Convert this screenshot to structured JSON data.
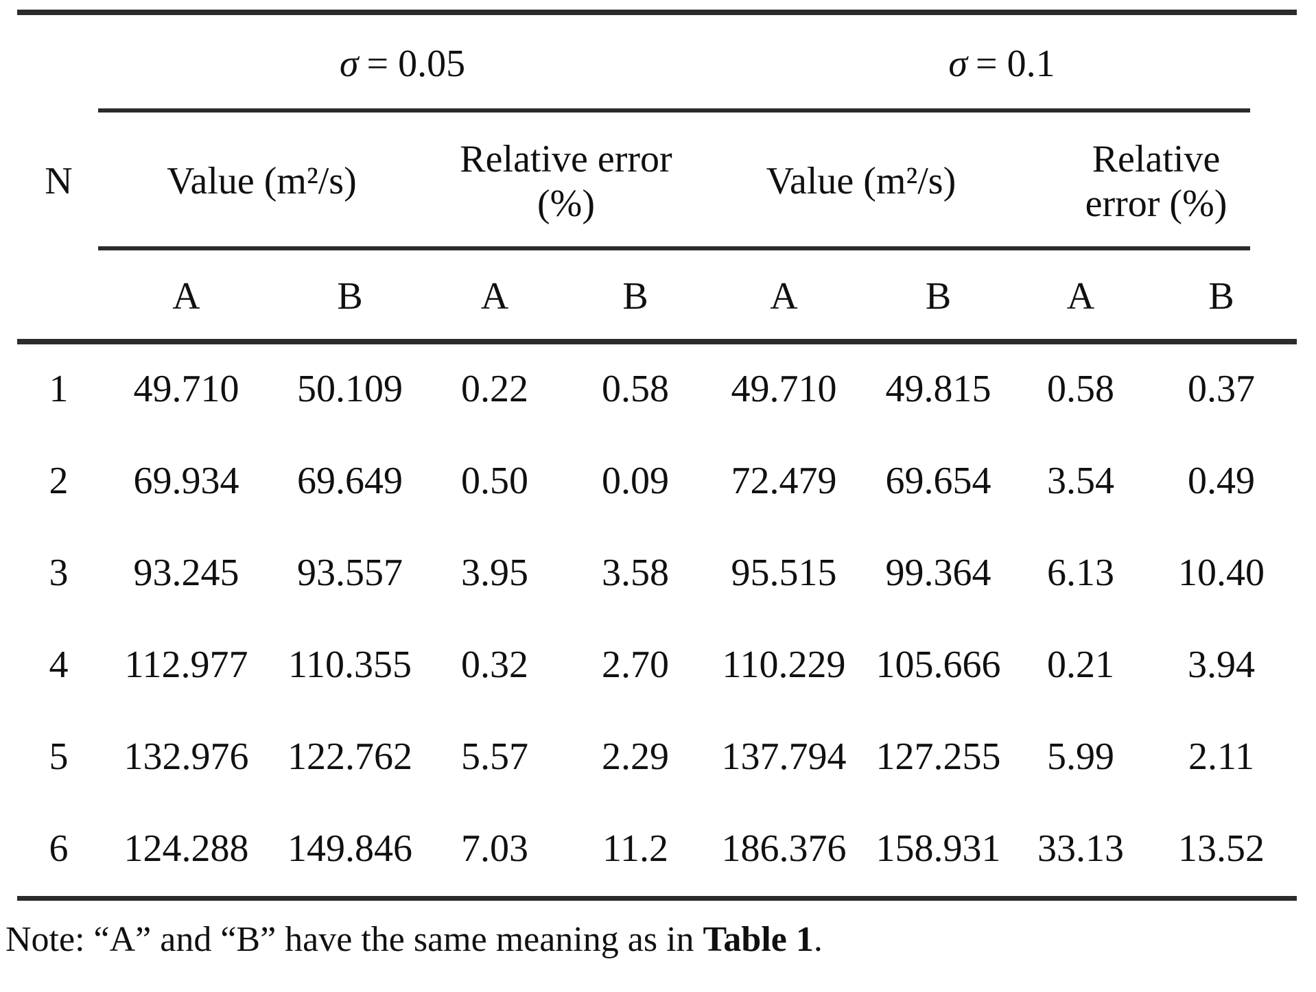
{
  "table": {
    "header": {
      "sigma1_symbol": "σ",
      "sigma1_rest": "= 0.05",
      "sigma2_symbol": "σ",
      "sigma2_rest": "= 0.1",
      "n_label": "N",
      "value1_label": "Value (m²/s)",
      "rel1_line1": "Relative error",
      "rel1_line2": "(%)",
      "value2_label": "Value (m²/s)",
      "rel2_line1": "Relative",
      "rel2_line2": "error (%)",
      "sub_labels": [
        "A",
        "B",
        "A",
        "B",
        "A",
        "B",
        "A",
        "B"
      ]
    },
    "rows": [
      [
        "1",
        "49.710",
        "50.109",
        "0.22",
        "0.58",
        "49.710",
        "49.815",
        "0.58",
        "0.37"
      ],
      [
        "2",
        "69.934",
        "69.649",
        "0.50",
        "0.09",
        "72.479",
        "69.654",
        "3.54",
        "0.49"
      ],
      [
        "3",
        "93.245",
        "93.557",
        "3.95",
        "3.58",
        "95.515",
        "99.364",
        "6.13",
        "10.40"
      ],
      [
        "4",
        "112.977",
        "110.355",
        "0.32",
        "2.70",
        "110.229",
        "105.666",
        "0.21",
        "3.94"
      ],
      [
        "5",
        "132.976",
        "122.762",
        "5.57",
        "2.29",
        "137.794",
        "127.255",
        "5.99",
        "2.11"
      ],
      [
        "6",
        "124.288",
        "149.846",
        "7.03",
        "11.2",
        "186.376",
        "158.931",
        "33.13",
        "13.52"
      ]
    ]
  },
  "note": {
    "prefix": "Note: “A” and “B” have the same meaning as in ",
    "bold": "Table 1",
    "suffix": "."
  }
}
